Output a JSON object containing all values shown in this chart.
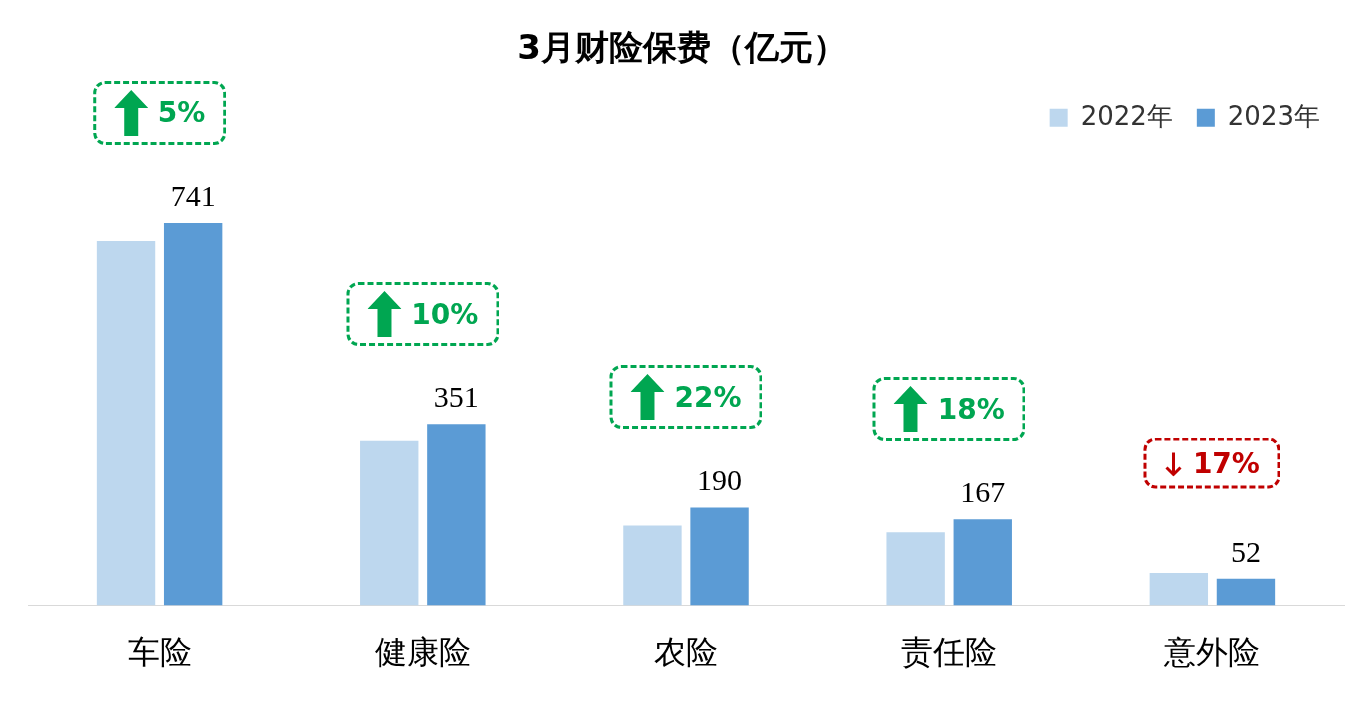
{
  "chart_data": {
    "type": "bar",
    "title": "3月财险保费（亿元）",
    "categories": [
      "车险",
      "健康险",
      "农险",
      "责任险",
      "意外险"
    ],
    "series": [
      {
        "name": "2022年",
        "color": "#bdd7ee",
        "values": [
          706,
          319,
          155,
          142,
          63
        ]
      },
      {
        "name": "2023年",
        "color": "#5b9bd5",
        "values": [
          741,
          351,
          190,
          167,
          52
        ],
        "value_labels": [
          "741",
          "351",
          "190",
          "167",
          "52"
        ]
      }
    ],
    "tick_labels": "x",
    "grid": false,
    "legend": "top right",
    "annotations": [
      "5%",
      "10%",
      "22%",
      "18%",
      "17%"
    ]
  }
}
